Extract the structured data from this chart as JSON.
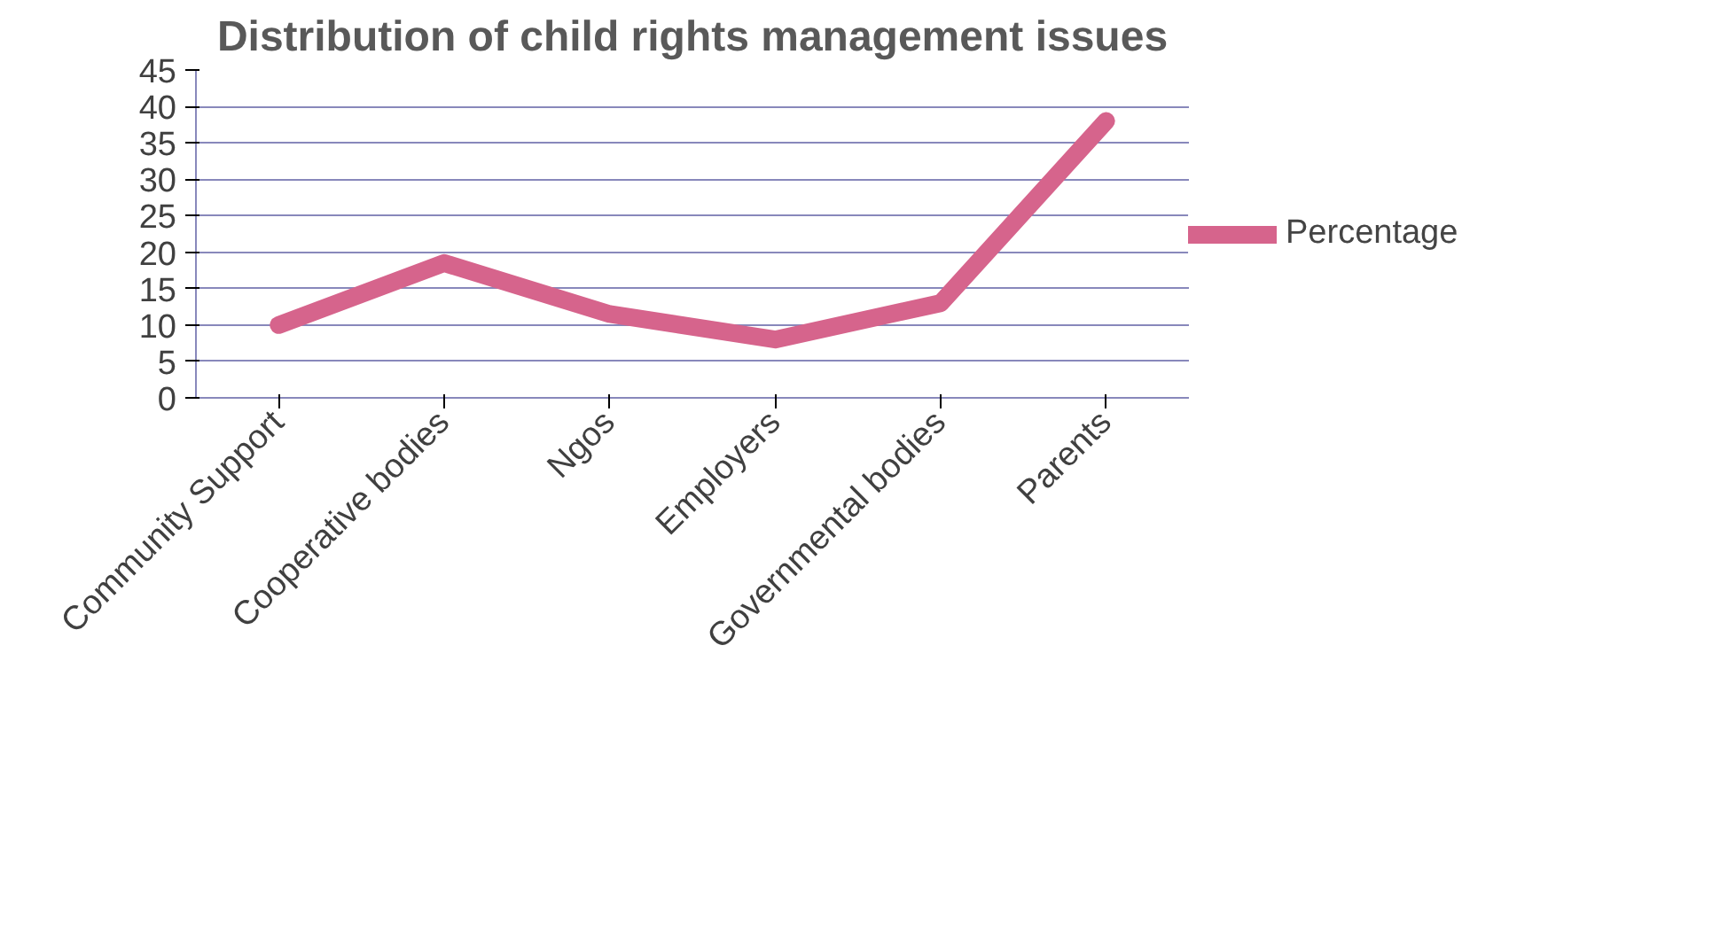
{
  "chart_data": {
    "type": "line",
    "title": "Distribution of child rights management issues",
    "categories": [
      "Community Support",
      "Cooperative bodies",
      "Ngos",
      "Employers",
      "Governmental bodies",
      "Parents"
    ],
    "series": [
      {
        "name": "Percentage",
        "color": "#d6648c",
        "values": [
          10,
          18.5,
          11.5,
          8,
          13,
          38
        ]
      }
    ],
    "ylim": [
      0,
      45
    ],
    "yticks": [
      0,
      5,
      10,
      15,
      20,
      25,
      30,
      35,
      40,
      45
    ],
    "grid": "y",
    "legend": "right"
  }
}
